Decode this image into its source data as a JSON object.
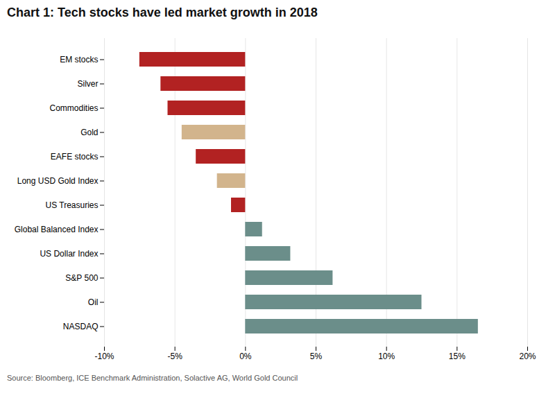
{
  "chart_data": {
    "type": "bar",
    "orientation": "horizontal",
    "title": "Chart 1: Tech stocks have led market growth in 2018",
    "caption": "Source: Bloomberg, ICE Benchmark Administration, Solactive AG, World Gold Council",
    "categories": [
      "EM stocks",
      "Silver",
      "Commodities",
      "Gold",
      "EAFE stocks",
      "Long USD Gold Index",
      "US Treasuries",
      "Global Balanced Index",
      "US Dollar Index",
      "S&P 500",
      "Oil",
      "NASDAQ"
    ],
    "values": [
      -7.5,
      -6.0,
      -5.5,
      -4.5,
      -3.5,
      -2.0,
      -1.0,
      1.2,
      3.2,
      6.2,
      12.5,
      16.5
    ],
    "colors": [
      "#b22222",
      "#b22222",
      "#b22222",
      "#d2b48c",
      "#b22222",
      "#d2b48c",
      "#b22222",
      "#6b8e8a",
      "#6b8e8a",
      "#6b8e8a",
      "#6b8e8a",
      "#6b8e8a"
    ],
    "xlim": [
      -10,
      20
    ],
    "xticks": [
      {
        "value": -10,
        "label": "-10%"
      },
      {
        "value": -5,
        "label": "-5%"
      },
      {
        "value": 0,
        "label": "0%"
      },
      {
        "value": 5,
        "label": "5%"
      },
      {
        "value": 10,
        "label": "10%"
      },
      {
        "value": 15,
        "label": "15%"
      },
      {
        "value": 20,
        "label": "20%"
      }
    ],
    "grid": true
  }
}
